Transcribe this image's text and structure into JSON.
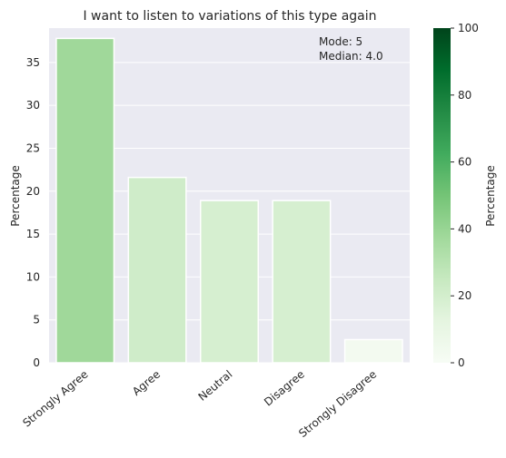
{
  "chart_data": {
    "type": "bar",
    "title": "I want to listen to variations of this type again",
    "xlabel": "",
    "ylabel": "Percentage",
    "categories": [
      "Strongly Agree",
      "Agree",
      "Neutral",
      "Disagree",
      "Strongly Disagree"
    ],
    "values": [
      37.8,
      21.6,
      18.9,
      18.9,
      2.7
    ],
    "ylim": [
      0,
      39
    ],
    "yticks": [
      0,
      5,
      10,
      15,
      20,
      25,
      30,
      35
    ],
    "grid": true,
    "annotation": [
      "Mode: 5",
      "Median: 4.0"
    ],
    "colorbar": {
      "label": "Percentage",
      "range": [
        0,
        100
      ],
      "ticks": [
        0,
        20,
        40,
        60,
        80,
        100
      ],
      "colors": [
        "#f7fcf5",
        "#e5f5e0",
        "#c7e9c0",
        "#a1d99b",
        "#74c476",
        "#41ab5d",
        "#238b45",
        "#006d2c",
        "#00441b"
      ]
    },
    "colors": {
      "plot_background": "#eaeaf2",
      "gridline": "#ffffff"
    }
  }
}
